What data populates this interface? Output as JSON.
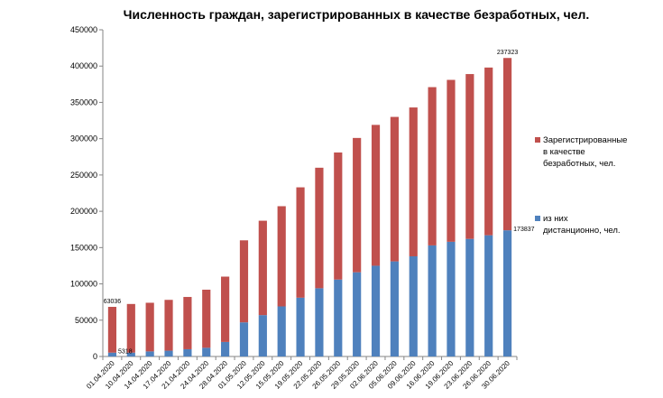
{
  "chart_data": {
    "type": "bar",
    "stacked": true,
    "title": "Численность граждан, зарегистрированных в качестве безработных, чел.",
    "xlabel": "",
    "ylabel": "",
    "ylim": [
      0,
      450000
    ],
    "yticks": [
      0,
      50000,
      100000,
      150000,
      200000,
      250000,
      300000,
      350000,
      400000,
      450000
    ],
    "grid": false,
    "legend_position": "right",
    "categories": [
      "01.04.2020",
      "10.04.2020",
      "14.04.2020",
      "17.04.2020",
      "21.04.2020",
      "24.04.2020",
      "28.04.2020",
      "01.05.2020",
      "12.05.2020",
      "15.05.2020",
      "19.05.2020",
      "22.05.2020",
      "26.05.2020",
      "29.05.2020",
      "02.06.2020",
      "05.06.2020",
      "09.06.2020",
      "16.06.2020",
      "19.06.2020",
      "23.06.2020",
      "26.06.2020",
      "30.06.2020"
    ],
    "series": [
      {
        "name": "Зарегистрированные в качестве безработных, чел.",
        "legend_lines": [
          "Зарегистрированные",
          "в качестве",
          "безработных, чел."
        ],
        "color": "#c0504d",
        "values": [
          63036,
          67000,
          67000,
          70000,
          72000,
          80000,
          90000,
          113000,
          130000,
          138000,
          152000,
          166000,
          175000,
          185000,
          194000,
          199000,
          205000,
          218000,
          223000,
          227000,
          231000,
          237323
        ]
      },
      {
        "name": "из них дистанционно, чел.",
        "legend_lines": [
          "из них",
          "дистанционно, чел."
        ],
        "color": "#4f81bd",
        "values": [
          5318,
          5318,
          7000,
          8000,
          10000,
          12000,
          20000,
          47000,
          57000,
          69000,
          81000,
          94000,
          106000,
          116000,
          125000,
          131000,
          138000,
          153000,
          158000,
          162000,
          167000,
          173837
        ]
      }
    ],
    "data_labels": [
      {
        "category": "01.04.2020",
        "series": 0,
        "text": "63036"
      },
      {
        "category": "01.04.2020",
        "series": 1,
        "text": "5318"
      },
      {
        "category": "30.06.2020",
        "series": 0,
        "text": "237323"
      },
      {
        "category": "30.06.2020",
        "series": 1,
        "text": "173837"
      }
    ]
  }
}
